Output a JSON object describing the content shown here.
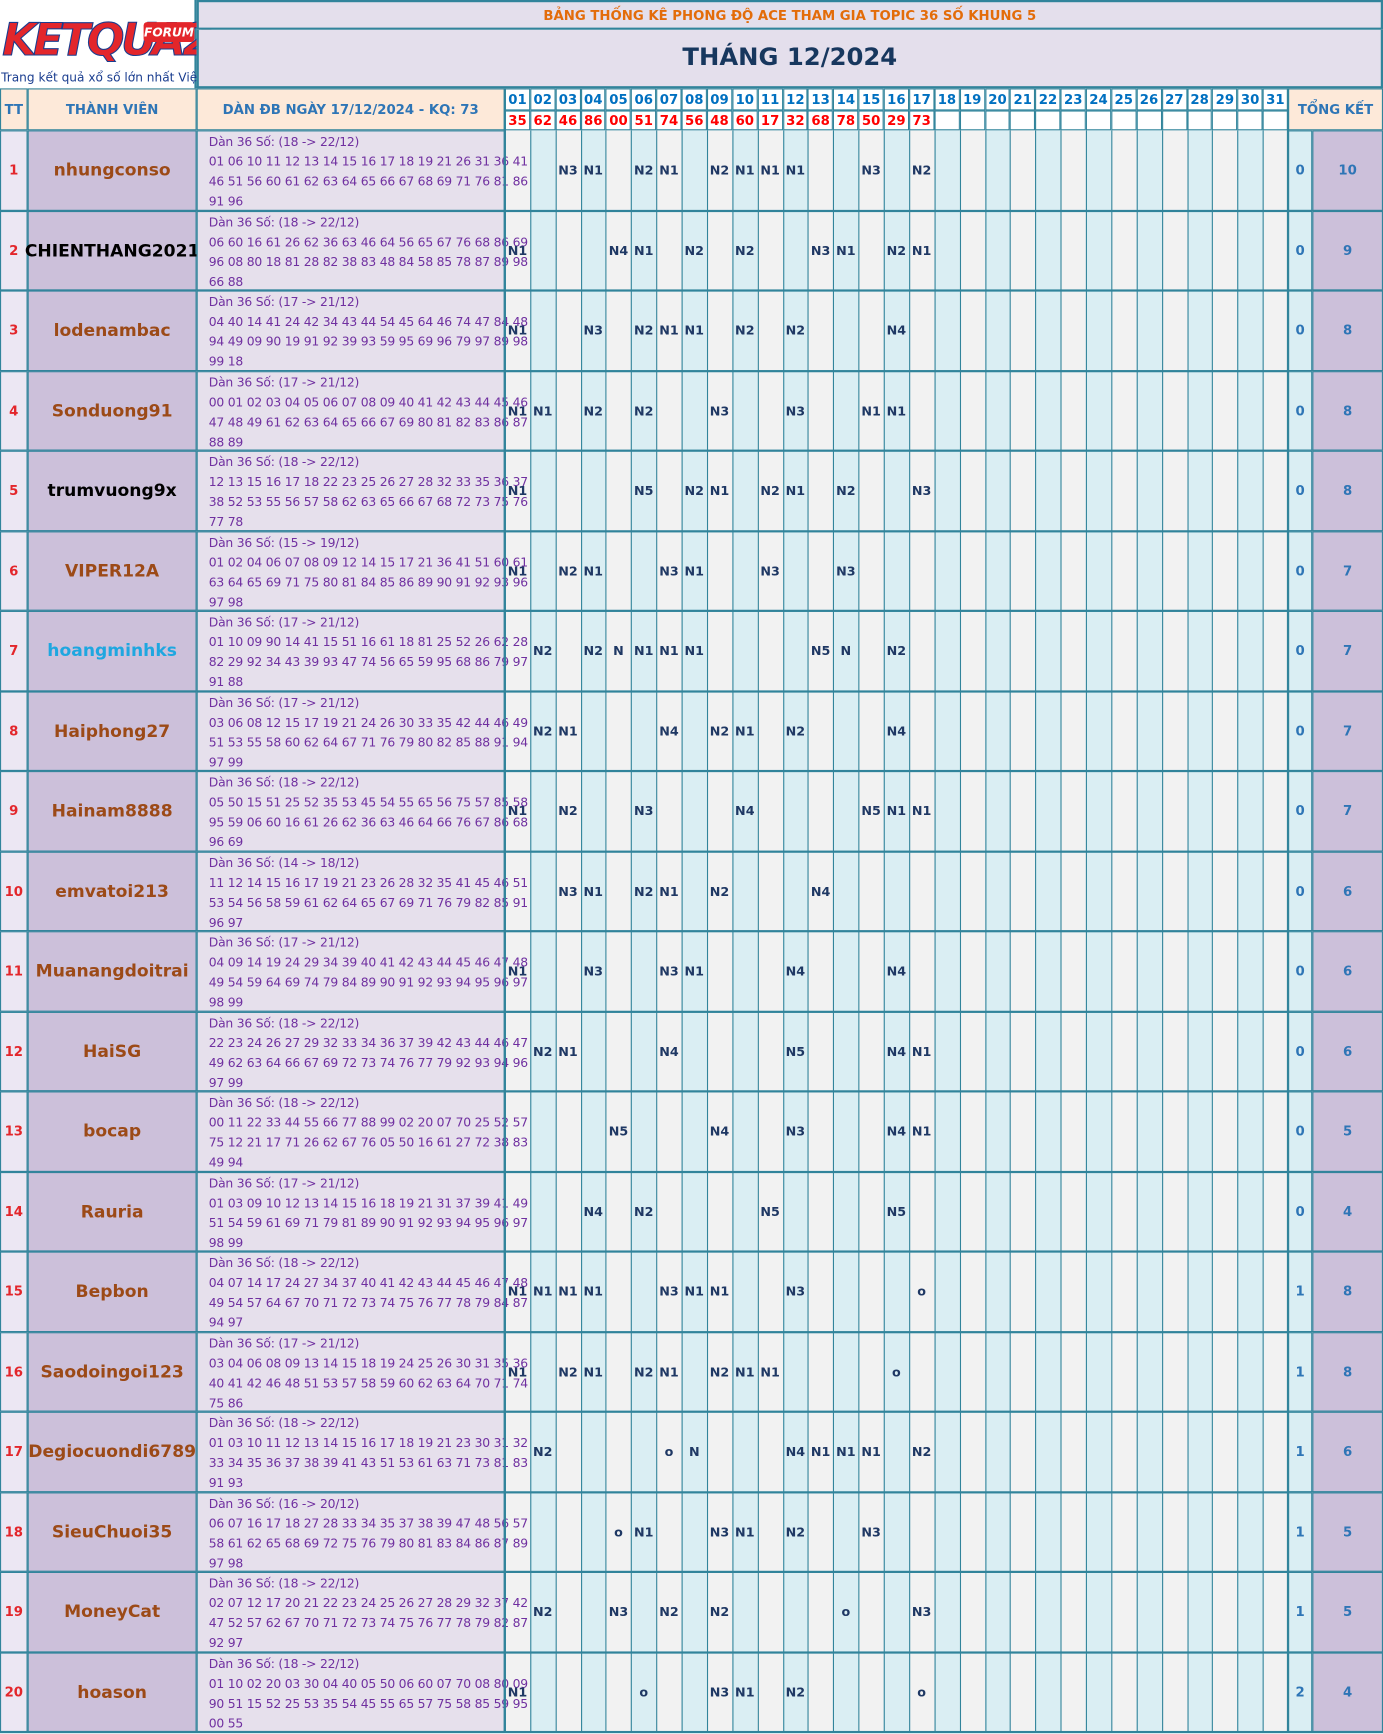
{
  "header": {
    "logo": "KETQUA2",
    "logo_badge": "FORUM",
    "logo_tagline": "Trang kết quả xổ số lớn nhất Việt Nam",
    "title": "BẢNG THỐNG KÊ PHONG ĐỘ ACE THAM GIA TOPIC 36 SỐ KHUNG 5",
    "month": "THÁNG 12/2024"
  },
  "table": {
    "columns": {
      "tt": "TT",
      "member": "THÀNH VIÊN",
      "dan": "DÀN ĐB NGÀY 17/12/2024 - KQ: 73",
      "total": "TỔNG KẾT"
    },
    "days": [
      "01",
      "02",
      "03",
      "04",
      "05",
      "06",
      "07",
      "08",
      "09",
      "10",
      "11",
      "12",
      "13",
      "14",
      "15",
      "16",
      "17",
      "18",
      "19",
      "20",
      "21",
      "22",
      "23",
      "24",
      "25",
      "26",
      "27",
      "28",
      "29",
      "30",
      "31"
    ],
    "results": [
      "35",
      "62",
      "46",
      "86",
      "00",
      "51",
      "74",
      "56",
      "48",
      "60",
      "17",
      "32",
      "68",
      "78",
      "50",
      "29",
      "73"
    ],
    "rows": [
      {
        "tt": "1",
        "name": "nhungconso",
        "color": "#9c4a17",
        "dan": [
          "Dàn 36 Số: (18 -> 22/12)",
          "01 06 10 11 12 13 14 15 16 17 18 19 21 26 31 36 41",
          "46 51 56 60 61 62 63 64 65 66 67 68 69 71 76 81 86",
          "91 96"
        ],
        "cells": [
          null,
          null,
          "N3",
          "N1",
          null,
          "N2",
          "N1",
          null,
          "N2",
          "N1",
          "N1",
          "N1",
          null,
          null,
          "N3",
          null,
          "N2"
        ],
        "total_a": "0",
        "total_b": "10"
      },
      {
        "tt": "2",
        "name": "CHIENTHANG2021",
        "color": "#000000",
        "dan": [
          "Dàn 36 Số: (18 -> 22/12)",
          "06 60 16 61 26 62 36 63 46 64 56 65 67 76 68 86 69",
          "96 08 80 18 81 28 82 38 83 48 84 58 85 78 87 89 98",
          "66 88"
        ],
        "cells": [
          "N1",
          null,
          null,
          null,
          "N4",
          "N1",
          null,
          "N2",
          null,
          "N2",
          null,
          null,
          "N3",
          "N1",
          null,
          "N2",
          "N1"
        ],
        "total_a": "0",
        "total_b": "9"
      },
      {
        "tt": "3",
        "name": "lodenambac",
        "color": "#9c4a17",
        "dan": [
          "Dàn 36 Số: (17 -> 21/12)",
          "04 40 14 41 24 42 34 43 44 54 45 64 46 74 47 84 48",
          "94 49 09 90 19 91 92 39 93 59 95 69 96 79 97 89 98",
          "99 18"
        ],
        "cells": [
          "N1",
          null,
          null,
          "N3",
          null,
          "N2",
          "N1",
          "N1",
          null,
          "N2",
          null,
          "N2",
          null,
          null,
          null,
          "N4",
          null
        ],
        "total_a": "0",
        "total_b": "8"
      },
      {
        "tt": "4",
        "name": "Sonduong91",
        "color": "#9c4a17",
        "dan": [
          "Dàn 36 Số: (17 -> 21/12)",
          "00 01 02 03 04 05 06 07 08 09 40 41 42 43 44 45 46",
          "47 48 49 61 62 63 64 65 66 67 69 80 81 82 83 86 87",
          "88 89"
        ],
        "cells": [
          "N1",
          "N1",
          null,
          "N2",
          null,
          "N2",
          null,
          null,
          "N3",
          null,
          null,
          "N3",
          null,
          null,
          "N1",
          "N1",
          null
        ],
        "total_a": "0",
        "total_b": "8"
      },
      {
        "tt": "5",
        "name": "trumvuong9x",
        "color": "#000000",
        "dan": [
          "Dàn 36 Số: (18 -> 22/12)",
          "12 13 15 16 17 18 22 23 25 26 27 28 32 33 35 36 37",
          "38 52 53 55 56 57 58 62 63 65 66 67 68 72 73 75 76",
          "77 78"
        ],
        "cells": [
          "N1",
          null,
          null,
          null,
          null,
          "N5",
          null,
          "N2",
          "N1",
          null,
          "N2",
          "N1",
          null,
          "N2",
          null,
          null,
          "N3"
        ],
        "total_a": "0",
        "total_b": "8"
      },
      {
        "tt": "6",
        "name": "VIPER12A",
        "color": "#9c4a17",
        "dan": [
          "Dàn 36 Số: (15 -> 19/12)",
          "01 02 04 06 07 08 09 12 14 15 17 21 36 41 51 60 61",
          "63 64 65 69 71 75 80 81 84 85 86 89 90 91 92 93 96",
          "97 98"
        ],
        "cells": [
          "N1",
          null,
          "N2",
          "N1",
          null,
          null,
          "N3",
          "N1",
          null,
          null,
          "N3",
          null,
          null,
          "N3",
          null,
          null,
          null
        ],
        "total_a": "0",
        "total_b": "7"
      },
      {
        "tt": "7",
        "name": "hoangminhks",
        "color": "#1ea7e0",
        "dan": [
          "Dàn 36 Số: (17 -> 21/12)",
          "01 10 09 90 14 41 15 51 16 61 18 81 25 52 26 62 28",
          "82 29 92 34 43 39 93 47 74 56 65 59 95 68 86 79 97",
          "91 88"
        ],
        "cells": [
          null,
          "N2",
          null,
          "N2",
          "N",
          "N1",
          "N1",
          "N1",
          null,
          null,
          null,
          null,
          "N5",
          "N",
          null,
          "N2",
          null
        ],
        "total_a": "0",
        "total_b": "7"
      },
      {
        "tt": "8",
        "name": "Haiphong27",
        "color": "#9c4a17",
        "dan": [
          "Dàn 36 Số: (17 -> 21/12)",
          "03 06 08 12 15 17 19 21 24 26 30 33 35 42 44 46 49",
          "51 53 55 58 60 62 64 67 71 76 79 80 82 85 88 91 94",
          "97 99"
        ],
        "cells": [
          null,
          "N2",
          "N1",
          null,
          null,
          null,
          "N4",
          null,
          "N2",
          "N1",
          null,
          "N2",
          null,
          null,
          null,
          "N4",
          null
        ],
        "total_a": "0",
        "total_b": "7"
      },
      {
        "tt": "9",
        "name": "Hainam8888",
        "color": "#9c4a17",
        "dan": [
          "Dàn 36 Số: (18 -> 22/12)",
          "05 50 15 51 25 52 35 53 45 54 55 65 56 75 57 85 58",
          "95 59 06 60 16 61 26 62 36 63 46 64 66 76 67 86 68",
          "96 69"
        ],
        "cells": [
          "N1",
          null,
          "N2",
          null,
          null,
          "N3",
          null,
          null,
          null,
          "N4",
          null,
          null,
          null,
          null,
          "N5",
          "N1",
          "N1"
        ],
        "total_a": "0",
        "total_b": "7"
      },
      {
        "tt": "10",
        "name": "emvatoi213",
        "color": "#9c4a17",
        "dan": [
          "Dàn 36 Số: (14 -> 18/12)",
          "11 12 14 15 16 17 19 21 23 26 28 32 35 41 45 46 51",
          "53 54 56 58 59 61 62 64 65 67 69 71 76 79 82 85 91",
          "96 97"
        ],
        "cells": [
          null,
          null,
          "N3",
          "N1",
          null,
          "N2",
          "N1",
          null,
          "N2",
          null,
          null,
          null,
          "N4",
          null,
          null,
          null,
          null
        ],
        "total_a": "0",
        "total_b": "6"
      },
      {
        "tt": "11",
        "name": "Muanangdoitrai",
        "color": "#9c4a17",
        "dan": [
          "Dàn 36 Số: (17 -> 21/12)",
          "04 09 14 19 24 29 34 39 40 41 42 43 44 45 46 47 48",
          "49 54 59 64 69 74 79 84 89 90 91 92 93 94 95 96 97",
          "98 99"
        ],
        "cells": [
          "N1",
          null,
          null,
          "N3",
          null,
          null,
          "N3",
          "N1",
          null,
          null,
          null,
          "N4",
          null,
          null,
          null,
          "N4",
          null
        ],
        "total_a": "0",
        "total_b": "6"
      },
      {
        "tt": "12",
        "name": "HaiSG",
        "color": "#9c4a17",
        "dan": [
          "Dàn 36 Số: (18 -> 22/12)",
          "22 23 24 26 27 29 32 33 34 36 37 39 42 43 44 46 47",
          "49 62 63 64 66 67 69 72 73 74 76 77 79 92 93 94 96",
          "97 99"
        ],
        "cells": [
          null,
          "N2",
          "N1",
          null,
          null,
          null,
          "N4",
          null,
          null,
          null,
          null,
          "N5",
          null,
          null,
          null,
          "N4",
          "N1"
        ],
        "total_a": "0",
        "total_b": "6"
      },
      {
        "tt": "13",
        "name": "bocap",
        "color": "#9c4a17",
        "dan": [
          "Dàn 36 Số: (18 -> 22/12)",
          "00 11 22 33 44 55 66 77 88 99 02 20 07 70 25 52 57",
          "75 12 21 17 71 26 62 67 76 05 50 16 61 27 72 38 83",
          "49 94"
        ],
        "cells": [
          null,
          null,
          null,
          null,
          "N5",
          null,
          null,
          null,
          "N4",
          null,
          null,
          "N3",
          null,
          null,
          null,
          "N4",
          "N1"
        ],
        "total_a": "0",
        "total_b": "5"
      },
      {
        "tt": "14",
        "name": "Rauria",
        "color": "#9c4a17",
        "dan": [
          "Dàn 36 Số: (17 -> 21/12)",
          "01 03 09 10 12 13 14 15 16 18 19 21 31 37 39 41 49",
          "51 54 59 61 69 71 79 81 89 90 91 92 93 94 95 96 97",
          "98 99"
        ],
        "cells": [
          null,
          null,
          null,
          "N4",
          null,
          "N2",
          null,
          null,
          null,
          null,
          "N5",
          null,
          null,
          null,
          null,
          "N5",
          null
        ],
        "total_a": "0",
        "total_b": "4"
      },
      {
        "tt": "15",
        "name": "Bepbon",
        "color": "#9c4a17",
        "dan": [
          "Dàn 36 Số: (18 -> 22/12)",
          "04 07 14 17 24 27 34 37 40 41 42 43 44 45 46 47 48",
          "49 54 57 64 67 70 71 72 73 74 75 76 77 78 79 84 87",
          "94 97"
        ],
        "cells": [
          "N1",
          "N1",
          "N1",
          "N1",
          null,
          null,
          "N3",
          "N1",
          "N1",
          null,
          null,
          "N3",
          null,
          null,
          null,
          null,
          "o"
        ],
        "total_a": "1",
        "total_b": "8"
      },
      {
        "tt": "16",
        "name": "Saodoingoi123",
        "color": "#9c4a17",
        "dan": [
          "Dàn 36 Số: (17 -> 21/12)",
          "03 04 06 08 09 13 14 15 18 19 24 25 26 30 31 35 36",
          "40 41 42 46 48 51 53 57 58 59 60 62 63 64 70 71 74",
          "75 86"
        ],
        "cells": [
          "N1",
          null,
          "N2",
          "N1",
          null,
          "N2",
          "N1",
          null,
          "N2",
          "N1",
          "N1",
          null,
          null,
          null,
          null,
          "o",
          null
        ],
        "total_a": "1",
        "total_b": "8"
      },
      {
        "tt": "17",
        "name": "Degiocuondi6789",
        "color": "#9c4a17",
        "dan": [
          "Dàn 36 Số: (18 -> 22/12)",
          "01 03 10 11 12 13 14 15 16 17 18 19 21 23 30 31 32",
          "33 34 35 36 37 38 39 41 43 51 53 61 63 71 73 81 83",
          "91 93"
        ],
        "cells": [
          null,
          "N2",
          null,
          null,
          null,
          null,
          "o",
          "N",
          null,
          null,
          null,
          "N4",
          "N1",
          "N1",
          "N1",
          null,
          "N2"
        ],
        "total_a": "1",
        "total_b": "6"
      },
      {
        "tt": "18",
        "name": "SieuChuoi35",
        "color": "#9c4a17",
        "dan": [
          "Dàn 36 Số: (16 -> 20/12)",
          "06 07 16 17 18 27 28 33 34 35 37 38 39 47 48 56 57",
          "58 61 62 65 68 69 72 75 76 79 80 81 83 84 86 87 89",
          "97 98"
        ],
        "cells": [
          null,
          null,
          null,
          null,
          "o",
          "N1",
          null,
          null,
          "N3",
          "N1",
          null,
          "N2",
          null,
          null,
          "N3",
          null,
          null
        ],
        "total_a": "1",
        "total_b": "5"
      },
      {
        "tt": "19",
        "name": "MoneyCat",
        "color": "#9c4a17",
        "dan": [
          "Dàn 36 Số: (18 -> 22/12)",
          "02 07 12 17 20 21 22 23 24 25 26 27 28 29 32 37 42",
          "47 52 57 62 67 70 71 72 73 74 75 76 77 78 79 82 87",
          "92 97"
        ],
        "cells": [
          null,
          "N2",
          null,
          null,
          "N3",
          null,
          "N2",
          null,
          "N2",
          null,
          null,
          null,
          null,
          "o",
          null,
          null,
          "N3"
        ],
        "total_a": "1",
        "total_b": "5"
      },
      {
        "tt": "20",
        "name": "hoason",
        "color": "#9c4a17",
        "dan": [
          "Dàn 36 Số: (18 -> 22/12)",
          "01 10 02 20 03 30 04 40 05 50 06 60 07 70 08 80 09",
          "90 51 15 52 25 53 35 54 45 55 65 57 75 58 85 59 95",
          "00 55"
        ],
        "cells": [
          "N1",
          null,
          null,
          null,
          null,
          "o",
          null,
          null,
          "N3",
          "N1",
          null,
          "N2",
          null,
          null,
          null,
          null,
          "o"
        ],
        "total_a": "2",
        "total_b": "4"
      }
    ]
  }
}
